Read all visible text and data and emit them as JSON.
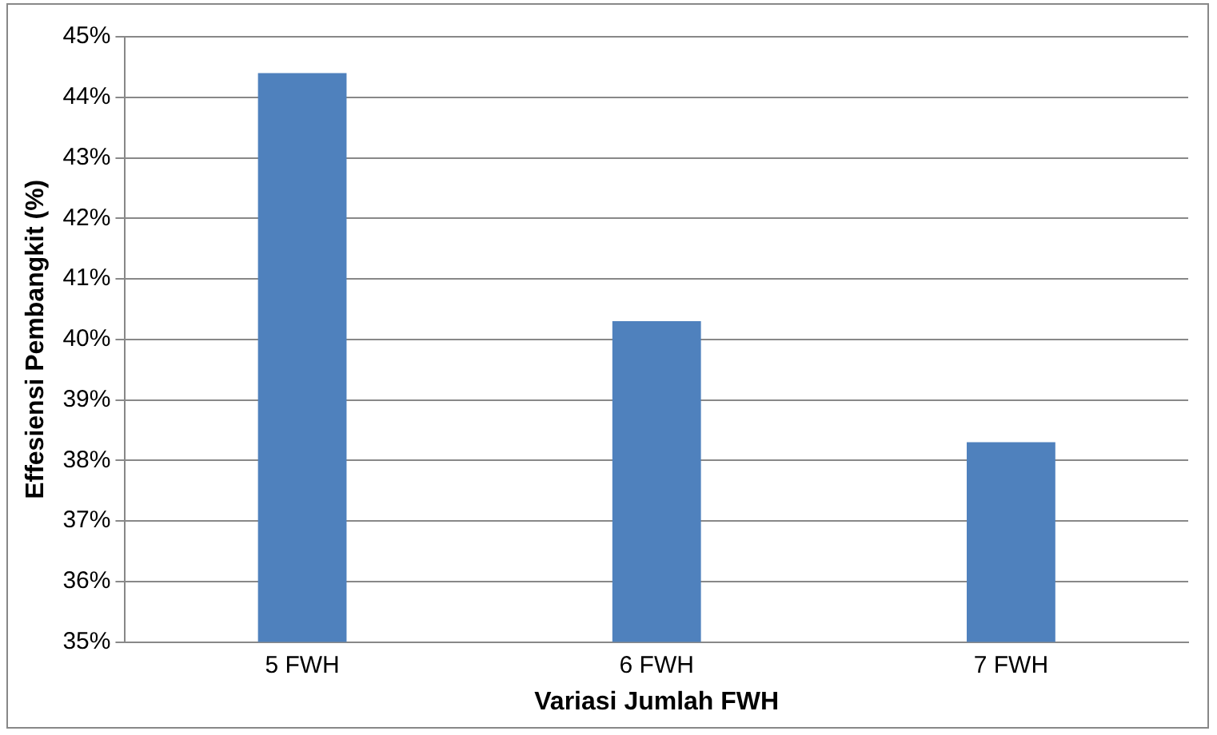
{
  "chart_data": {
    "type": "bar",
    "xlabel": "Variasi Jumlah FWH",
    "ylabel": "Effesiensi Pembangkit (%)",
    "categories": [
      "5 FWH",
      "6 FWH",
      "7 FWH"
    ],
    "series": [
      {
        "color": "#4f81bd",
        "values": [
          44.4,
          40.3,
          38.3
        ]
      }
    ],
    "ylim": [
      35,
      45
    ],
    "yticks": [
      {
        "value": 35,
        "label": "35%"
      },
      {
        "value": 36,
        "label": "36%"
      },
      {
        "value": 37,
        "label": "37%"
      },
      {
        "value": 38,
        "label": "38%"
      },
      {
        "value": 39,
        "label": "39%"
      },
      {
        "value": 40,
        "label": "40%"
      },
      {
        "value": 41,
        "label": "41%"
      },
      {
        "value": 42,
        "label": "42%"
      },
      {
        "value": 43,
        "label": "43%"
      },
      {
        "value": 44,
        "label": "44%"
      },
      {
        "value": 45,
        "label": "45%"
      }
    ],
    "grid": "y",
    "legend": false
  }
}
